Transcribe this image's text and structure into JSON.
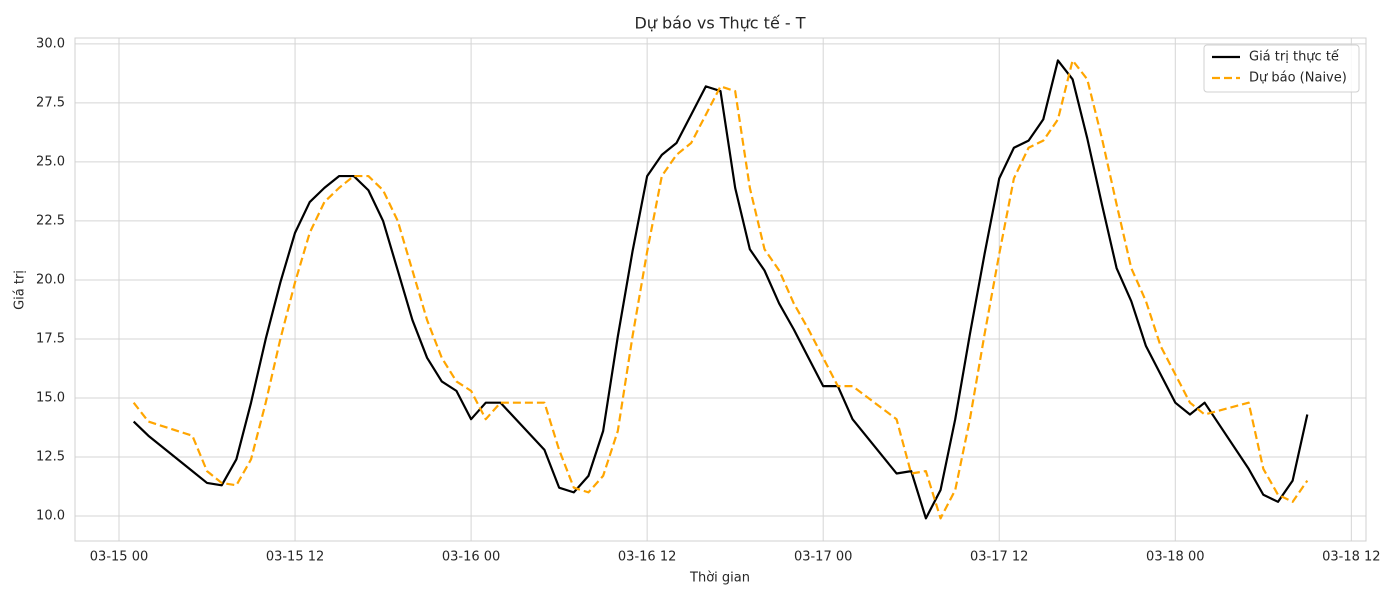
{
  "chart_data": {
    "type": "line",
    "title": "Dự báo vs Thực tế - T",
    "x_label": "Thời gian",
    "y_label": "Giá trị",
    "x": [
      "03-15 01:00",
      "03-15 02:00",
      "03-15 05:00",
      "03-15 06:00",
      "03-15 07:00",
      "03-15 08:00",
      "03-15 09:00",
      "03-15 10:00",
      "03-15 11:00",
      "03-15 12:00",
      "03-15 13:00",
      "03-15 14:00",
      "03-15 15:00",
      "03-15 16:00",
      "03-15 17:00",
      "03-15 18:00",
      "03-15 19:00",
      "03-15 20:00",
      "03-15 21:00",
      "03-15 22:00",
      "03-15 23:00",
      "03-16 00:00",
      "03-16 01:00",
      "03-16 02:00",
      "03-16 05:00",
      "03-16 06:00",
      "03-16 07:00",
      "03-16 08:00",
      "03-16 09:00",
      "03-16 10:00",
      "03-16 11:00",
      "03-16 12:00",
      "03-16 13:00",
      "03-16 14:00",
      "03-16 15:00",
      "03-16 16:00",
      "03-16 17:00",
      "03-16 18:00",
      "03-16 19:00",
      "03-16 20:00",
      "03-16 21:00",
      "03-16 22:00",
      "03-16 23:00",
      "03-17 00:00",
      "03-17 01:00",
      "03-17 02:00",
      "03-17 05:00",
      "03-17 06:00",
      "03-17 07:00",
      "03-17 08:00",
      "03-17 09:00",
      "03-17 10:00",
      "03-17 11:00",
      "03-17 12:00",
      "03-17 13:00",
      "03-17 14:00",
      "03-17 15:00",
      "03-17 16:00",
      "03-17 17:00",
      "03-17 18:00",
      "03-17 19:00",
      "03-17 20:00",
      "03-17 21:00",
      "03-17 22:00",
      "03-17 23:00",
      "03-18 00:00",
      "03-18 01:00",
      "03-18 02:00",
      "03-18 05:00",
      "03-18 06:00",
      "03-18 07:00",
      "03-18 08:00",
      "03-18 09:00"
    ],
    "series": [
      {
        "name": "Giá trị thực tế",
        "color": "#000000",
        "dash": "solid",
        "values": [
          14.0,
          13.4,
          11.9,
          11.4,
          11.3,
          12.4,
          14.8,
          17.5,
          19.9,
          22.0,
          23.3,
          23.9,
          24.4,
          24.4,
          23.8,
          22.5,
          20.4,
          18.3,
          16.7,
          15.7,
          15.3,
          14.1,
          14.8,
          14.8,
          12.8,
          11.2,
          11.0,
          11.7,
          13.6,
          17.6,
          21.2,
          24.4,
          25.3,
          25.8,
          27.0,
          28.2,
          28.0,
          23.9,
          21.3,
          20.4,
          19.0,
          17.9,
          16.7,
          15.5,
          15.5,
          14.1,
          11.8,
          11.9,
          9.9,
          11.1,
          14.1,
          17.7,
          21.1,
          24.3,
          25.6,
          25.9,
          26.8,
          29.3,
          28.5,
          26.0,
          23.2,
          20.5,
          19.1,
          17.2,
          16.0,
          14.8,
          14.3,
          14.8,
          12.0,
          10.9,
          10.6,
          11.5,
          14.3
        ]
      },
      {
        "name": "Dự báo (Naive)",
        "color": "#ffa500",
        "dash": "dashed",
        "values": [
          14.8,
          14.0,
          13.4,
          11.9,
          11.4,
          11.3,
          12.4,
          14.8,
          17.5,
          19.9,
          22.0,
          23.3,
          23.9,
          24.4,
          24.4,
          23.8,
          22.5,
          20.4,
          18.3,
          16.7,
          15.7,
          15.3,
          14.1,
          14.8,
          14.8,
          12.8,
          11.2,
          11.0,
          11.7,
          13.6,
          17.6,
          21.2,
          24.4,
          25.3,
          25.8,
          27.0,
          28.2,
          28.0,
          23.9,
          21.3,
          20.4,
          19.0,
          17.9,
          16.7,
          15.5,
          15.5,
          14.1,
          11.8,
          11.9,
          9.9,
          11.1,
          14.1,
          17.7,
          21.1,
          24.3,
          25.6,
          25.9,
          26.8,
          29.3,
          28.5,
          26.0,
          23.2,
          20.5,
          19.1,
          17.2,
          16.0,
          14.8,
          14.3,
          14.8,
          12.0,
          10.9,
          10.6,
          11.5
        ]
      }
    ],
    "xlim": [
      "03-14 21:00",
      "03-18 13:00"
    ],
    "xticks": [
      {
        "value": "03-15 00:00",
        "label": "03-15 00"
      },
      {
        "value": "03-15 12:00",
        "label": "03-15 12"
      },
      {
        "value": "03-16 00:00",
        "label": "03-16 00"
      },
      {
        "value": "03-16 12:00",
        "label": "03-16 12"
      },
      {
        "value": "03-17 00:00",
        "label": "03-17 00"
      },
      {
        "value": "03-17 12:00",
        "label": "03-17 12"
      },
      {
        "value": "03-18 00:00",
        "label": "03-18 00"
      },
      {
        "value": "03-18 12:00",
        "label": "03-18 12"
      }
    ],
    "ylim": [
      8.94,
      30.25
    ],
    "yticks": [
      {
        "value": 10,
        "label": "10.0"
      },
      {
        "value": 12.5,
        "label": "12.5"
      },
      {
        "value": 15,
        "label": "15.0"
      },
      {
        "value": 17.5,
        "label": "17.5"
      },
      {
        "value": 20,
        "label": "20.0"
      },
      {
        "value": 22.5,
        "label": "22.5"
      },
      {
        "value": 25,
        "label": "25.0"
      },
      {
        "value": 27.5,
        "label": "27.5"
      },
      {
        "value": 30,
        "label": "30.0"
      }
    ],
    "grid": true,
    "legend": "upper right"
  }
}
